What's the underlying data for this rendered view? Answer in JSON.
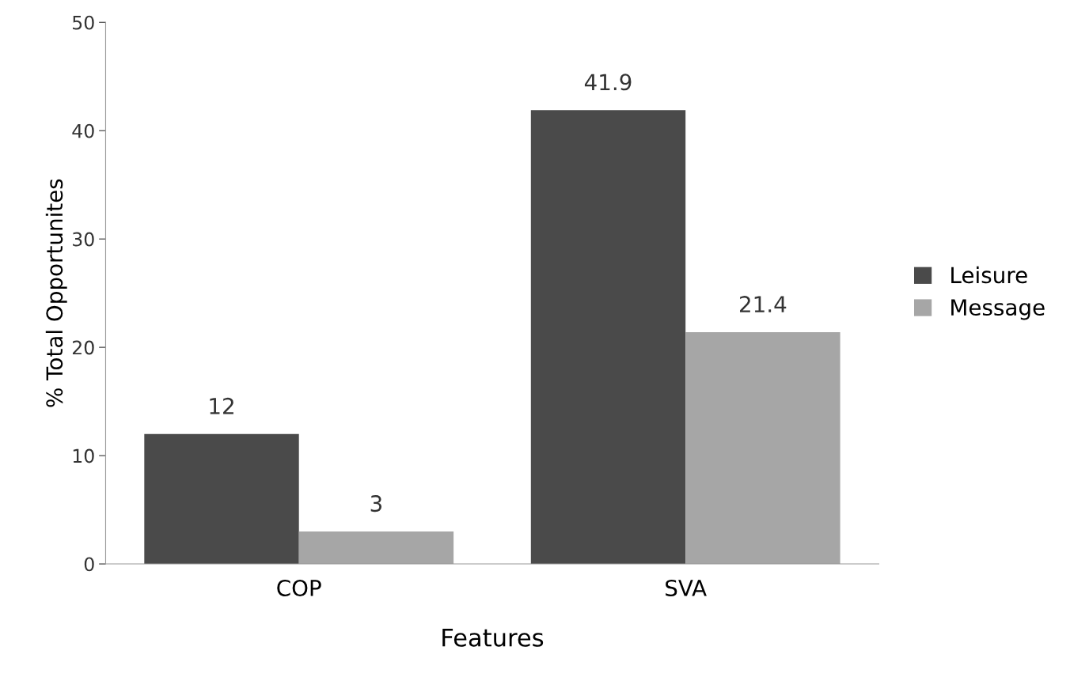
{
  "chart_data": {
    "type": "bar",
    "xlabel": "Features",
    "ylabel": "% Total Opportunites",
    "categories": [
      "COP",
      "SVA"
    ],
    "series": [
      {
        "name": "Leisure",
        "color": "#4a4a4a",
        "values": [
          12,
          41.9
        ]
      },
      {
        "name": "Message",
        "color": "#a6a6a6",
        "values": [
          3,
          21.4
        ]
      }
    ],
    "ylim": [
      0,
      50
    ],
    "yticks": [
      0,
      10,
      20,
      30,
      40,
      50
    ],
    "data_labels": true,
    "legend": "right",
    "grid": false
  }
}
